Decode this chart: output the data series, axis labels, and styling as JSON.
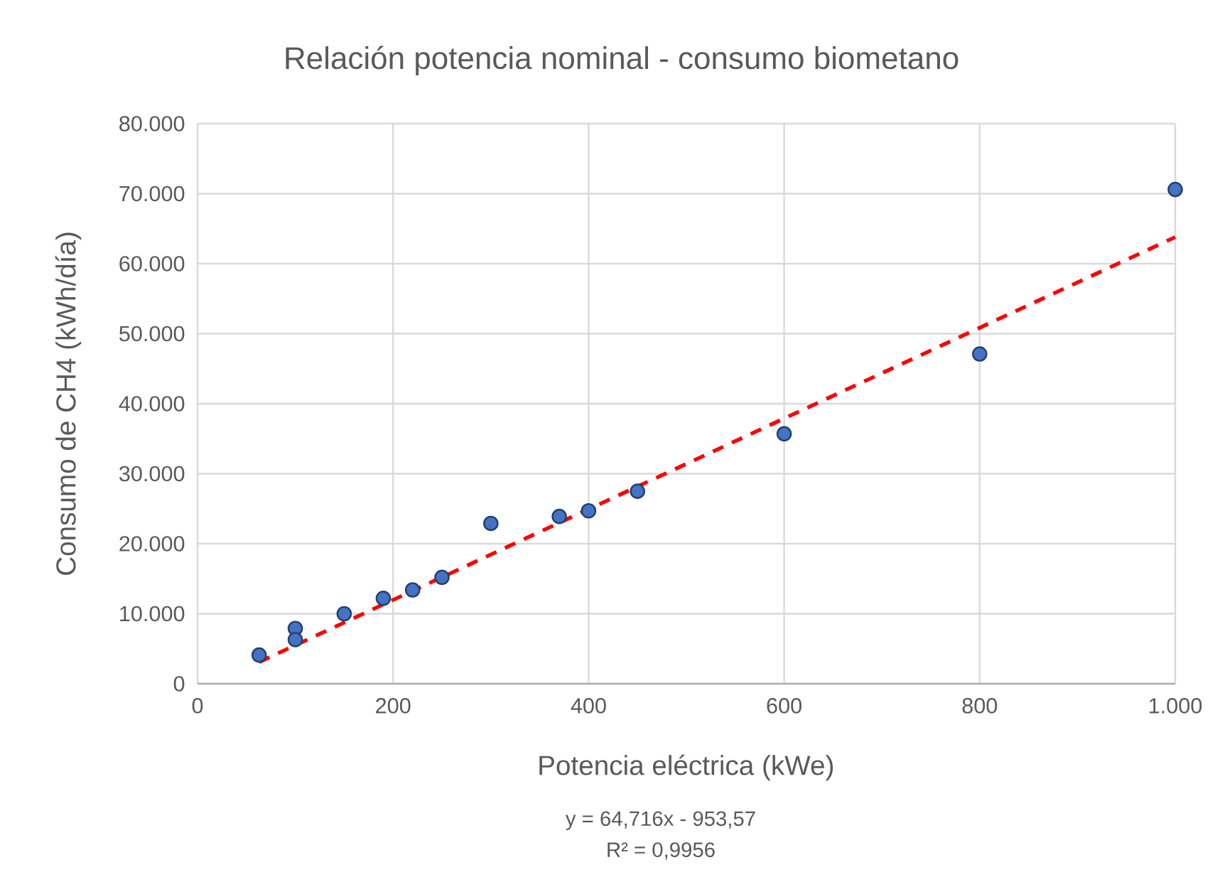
{
  "chart_data": {
    "type": "scatter",
    "title": "Relación potencia nominal - consumo biometano",
    "xlabel": "Potencia eléctrica (kWe)",
    "ylabel": "Consumo de CH4 (kWh/día)",
    "annotations": [
      "y = 64,716x - 953,57",
      "R² = 0,9956"
    ],
    "xlim": [
      0,
      1000
    ],
    "ylim": [
      0,
      80000
    ],
    "xticks": [
      0,
      200,
      400,
      600,
      800,
      {
        "value": 1000,
        "label": "1.000"
      }
    ],
    "yticks": [
      0,
      {
        "value": 10000,
        "label": "10.000"
      },
      {
        "value": 20000,
        "label": "20.000"
      },
      {
        "value": 30000,
        "label": "30.000"
      },
      {
        "value": 40000,
        "label": "40.000"
      },
      {
        "value": 50000,
        "label": "50.000"
      },
      {
        "value": 60000,
        "label": "60.000"
      },
      {
        "value": 70000,
        "label": "70.000"
      },
      {
        "value": 80000,
        "label": "80.000"
      }
    ],
    "grid": true,
    "series": [
      {
        "color": "#4472c4",
        "marker": "circle",
        "x": [
          63,
          100,
          100,
          150,
          190,
          220,
          250,
          300,
          370,
          400,
          450,
          600,
          800,
          1000
        ],
        "values": [
          4100,
          7900,
          6300,
          10000,
          12200,
          13400,
          15200,
          22900,
          23900,
          24700,
          27500,
          35700,
          47100,
          70600
        ]
      },
      {
        "type": "line",
        "color": "#ff0000",
        "line_style": "dashed",
        "marker": "none",
        "x": [
          63,
          1000
        ],
        "values": [
          3100,
          63800
        ]
      }
    ]
  }
}
